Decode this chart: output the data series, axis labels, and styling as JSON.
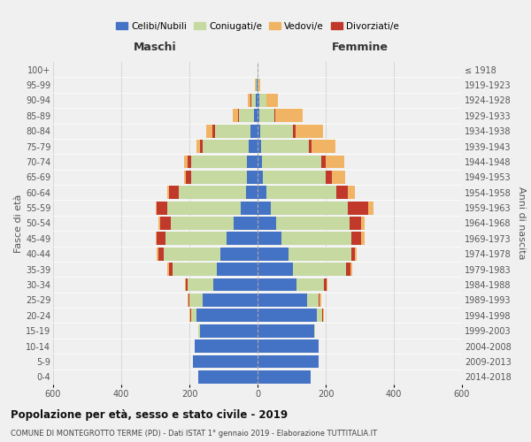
{
  "age_groups": [
    "0-4",
    "5-9",
    "10-14",
    "15-19",
    "20-24",
    "25-29",
    "30-34",
    "35-39",
    "40-44",
    "45-49",
    "50-54",
    "55-59",
    "60-64",
    "65-69",
    "70-74",
    "75-79",
    "80-84",
    "85-89",
    "90-94",
    "95-99",
    "100+"
  ],
  "birth_years": [
    "2014-2018",
    "2009-2013",
    "2004-2008",
    "1999-2003",
    "1994-1998",
    "1989-1993",
    "1984-1988",
    "1979-1983",
    "1974-1978",
    "1969-1973",
    "1964-1968",
    "1959-1963",
    "1954-1958",
    "1949-1953",
    "1944-1948",
    "1939-1943",
    "1934-1938",
    "1929-1933",
    "1924-1928",
    "1919-1923",
    "≤ 1918"
  ],
  "colors": {
    "celibi": "#4472c4",
    "coniugati": "#c5d9a0",
    "vedovi": "#f0b464",
    "divorziati": "#c0392b"
  },
  "males": {
    "celibi": [
      175,
      190,
      185,
      170,
      180,
      160,
      130,
      120,
      110,
      90,
      70,
      50,
      35,
      30,
      30,
      25,
      20,
      10,
      4,
      2,
      0
    ],
    "coniugati": [
      0,
      0,
      0,
      5,
      15,
      40,
      75,
      130,
      165,
      180,
      185,
      215,
      195,
      165,
      165,
      135,
      105,
      45,
      15,
      3,
      0
    ],
    "vedovi": [
      0,
      0,
      0,
      0,
      2,
      3,
      3,
      5,
      5,
      5,
      5,
      5,
      5,
      5,
      10,
      10,
      18,
      15,
      8,
      2,
      0
    ],
    "divorziati": [
      0,
      0,
      0,
      0,
      2,
      3,
      5,
      10,
      15,
      25,
      30,
      30,
      30,
      15,
      10,
      8,
      8,
      3,
      2,
      0,
      0
    ]
  },
  "females": {
    "celibi": [
      155,
      180,
      180,
      165,
      175,
      145,
      115,
      105,
      90,
      70,
      55,
      40,
      25,
      15,
      12,
      10,
      8,
      5,
      5,
      0,
      0
    ],
    "coniugati": [
      0,
      0,
      0,
      5,
      15,
      35,
      80,
      155,
      185,
      205,
      215,
      225,
      205,
      185,
      175,
      140,
      95,
      45,
      20,
      3,
      0
    ],
    "vedovi": [
      0,
      0,
      0,
      0,
      2,
      3,
      3,
      5,
      5,
      8,
      10,
      15,
      20,
      40,
      55,
      70,
      80,
      80,
      35,
      5,
      0
    ],
    "divorziati": [
      0,
      0,
      0,
      0,
      2,
      3,
      8,
      12,
      12,
      30,
      35,
      60,
      35,
      18,
      12,
      8,
      8,
      2,
      0,
      0,
      0
    ]
  },
  "title": "Popolazione per età, sesso e stato civile - 2019",
  "subtitle": "COMUNE DI MONTEGROTTO TERME (PD) - Dati ISTAT 1° gennaio 2019 - Elaborazione TUTTITALIA.IT",
  "xlabel_left": "Maschi",
  "xlabel_right": "Femmine",
  "ylabel_left": "Fasce di età",
  "ylabel_right": "Anni di nascita",
  "xlim": 600,
  "legend_labels": [
    "Celibi/Nubili",
    "Coniugati/e",
    "Vedovi/e",
    "Divorziati/e"
  ],
  "background_color": "#f0f0f0",
  "grid_color": "#cccccc"
}
